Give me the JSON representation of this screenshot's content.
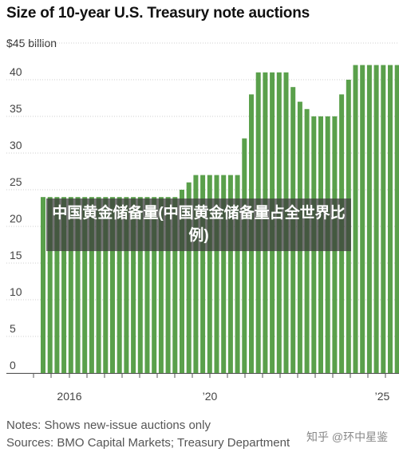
{
  "chart_data": {
    "type": "bar",
    "title": "Size of 10-year U.S. Treasury note auctions",
    "unit_label": "$45 billion",
    "ylim": [
      0,
      45
    ],
    "yticks": [
      "0",
      "5",
      "10",
      "15",
      "20",
      "25",
      "30",
      "35",
      "40"
    ],
    "xtick_labels": [
      "2016",
      "’20",
      "’25"
    ],
    "bar_color": "#5aa04b",
    "values": [
      24,
      24,
      24,
      24,
      24,
      24,
      24,
      24,
      24,
      24,
      24,
      24,
      24,
      24,
      24,
      24,
      24,
      24,
      24,
      24,
      25,
      26,
      27,
      27,
      27,
      27,
      27,
      27,
      27,
      32,
      38,
      41,
      41,
      41,
      41,
      41,
      39,
      37,
      36,
      35,
      35,
      35,
      35,
      38,
      40,
      42,
      42,
      42,
      42,
      42,
      42,
      42
    ]
  },
  "notes": {
    "line1": "Notes: Shows new-issue auctions only",
    "line2": "Sources: BMO Capital Markets; Treasury Department"
  },
  "overlay": {
    "text": "中国黄金储备量(中国黄金储备量占全世界比例)"
  },
  "watermark": {
    "text": "知乎 @环中星鉴"
  }
}
